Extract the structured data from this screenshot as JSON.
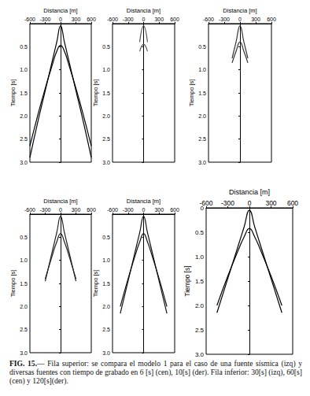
{
  "chart_data": [
    {
      "type": "line",
      "xlabel": "Distancia [m]",
      "ylabel": "Tiempo [s]",
      "xlim": [
        -600,
        600
      ],
      "xticks": [
        -600,
        -300,
        0,
        300,
        600
      ],
      "ylim": [
        0,
        3.0
      ],
      "yticks": [
        0.5,
        {
          "value": 1,
          "label": "1.0"
        },
        1.5,
        {
          "value": 2,
          "label": "2.0"
        },
        2.5,
        {
          "value": 3,
          "label": "3.0"
        }
      ],
      "x": [
        -600,
        -450,
        -300,
        -150,
        -75,
        0,
        75,
        150,
        300,
        450,
        600
      ],
      "series": [
        {
          "color": "#000000",
          "values": [
            2.9,
            2.15,
            1.45,
            0.75,
            0.4,
            0.05,
            0.4,
            0.75,
            1.45,
            2.15,
            2.9
          ]
        },
        {
          "color": "#000000",
          "values": [
            2.65,
            2.0,
            1.4,
            0.85,
            0.6,
            0.47,
            0.6,
            0.85,
            1.4,
            2.0,
            2.65
          ]
        }
      ]
    },
    {
      "type": "line",
      "xlabel": "Distancia [m]",
      "ylabel": "Tiempo [s]",
      "xlim": [
        -600,
        600
      ],
      "xticks": [
        -600,
        -300,
        0,
        300,
        600
      ],
      "ylim": [
        0,
        3.0
      ],
      "yticks": [
        0.5,
        {
          "value": 1,
          "label": "1.0"
        },
        1.5,
        {
          "value": 2,
          "label": "2.0"
        },
        2.5,
        {
          "value": 3,
          "label": "3.0"
        }
      ],
      "x": [
        -600,
        -450,
        -300,
        -150,
        -75,
        0,
        75,
        150,
        300,
        450,
        600
      ],
      "series": [
        {
          "color": "#555555",
          "values": [
            null,
            null,
            null,
            null,
            0.4,
            0.05,
            0.4,
            null,
            null,
            null,
            null
          ]
        },
        {
          "color": "#555555",
          "values": [
            null,
            null,
            null,
            null,
            0.6,
            0.45,
            0.6,
            null,
            null,
            null,
            null
          ]
        }
      ]
    },
    {
      "type": "line",
      "xlabel": "Distancia [m]",
      "ylabel": "Tiempo [s]",
      "xlim": [
        -600,
        600
      ],
      "xticks": [
        -600,
        -300,
        0,
        300,
        600
      ],
      "ylim": [
        0,
        3.0
      ],
      "yticks": [
        0.5,
        {
          "value": 1,
          "label": "1.0"
        },
        1.5,
        {
          "value": 2,
          "label": "2.0"
        },
        2.5,
        {
          "value": 3,
          "label": "3.0"
        }
      ],
      "x": [
        -600,
        -450,
        -300,
        -150,
        -75,
        0,
        75,
        150,
        300,
        450,
        600
      ],
      "series": [
        {
          "color": "#333333",
          "values": [
            null,
            null,
            null,
            0.75,
            0.4,
            0.05,
            0.4,
            0.75,
            null,
            null,
            null
          ]
        },
        {
          "color": "#333333",
          "values": [
            null,
            null,
            null,
            0.85,
            0.6,
            0.4,
            0.6,
            0.85,
            null,
            null,
            null
          ]
        }
      ]
    },
    {
      "type": "line",
      "xlabel": "Distancia [m]",
      "ylabel": "Tiempo [s]",
      "xlim": [
        -600,
        600
      ],
      "xticks": [
        -600,
        -300,
        0,
        300,
        600
      ],
      "ylim": [
        0,
        3.0
      ],
      "yticks": [
        0.5,
        {
          "value": 1,
          "label": "1.0"
        },
        1.5,
        {
          "value": 2,
          "label": "2.0"
        },
        2.5,
        {
          "value": 3,
          "label": "3.0"
        }
      ],
      "x": [
        -600,
        -450,
        -300,
        -150,
        -75,
        0,
        75,
        150,
        300,
        450,
        600
      ],
      "series": [
        {
          "color": "#222222",
          "values": [
            null,
            null,
            1.45,
            0.75,
            0.4,
            0.05,
            0.4,
            0.75,
            1.45,
            null,
            null
          ]
        },
        {
          "color": "#222222",
          "values": [
            null,
            null,
            1.4,
            0.85,
            0.6,
            0.42,
            0.6,
            0.85,
            1.4,
            null,
            null
          ]
        }
      ]
    },
    {
      "type": "line",
      "xlabel": "Distancia [m]",
      "ylabel": "Tiempo [s]",
      "xlim": [
        -600,
        600
      ],
      "xticks": [
        -600,
        -300,
        0,
        300,
        600
      ],
      "ylim": [
        0,
        3.0
      ],
      "yticks": [
        0.5,
        {
          "value": 1,
          "label": "1.0"
        },
        1.5,
        {
          "value": 2,
          "label": "2.0"
        },
        2.5,
        {
          "value": 3,
          "label": "3.0"
        }
      ],
      "x": [
        -600,
        -450,
        -300,
        -150,
        -75,
        0,
        75,
        150,
        300,
        450,
        600
      ],
      "series": [
        {
          "color": "#111111",
          "values": [
            null,
            2.15,
            1.45,
            0.75,
            0.4,
            0.05,
            0.4,
            0.75,
            1.45,
            2.15,
            null
          ]
        },
        {
          "color": "#111111",
          "values": [
            null,
            2.0,
            1.4,
            0.85,
            0.6,
            0.42,
            0.6,
            0.85,
            1.4,
            2.0,
            null
          ]
        }
      ]
    },
    {
      "type": "line",
      "xlabel": "Distancia [m]",
      "ylabel": "Tiempo [s]",
      "xlim": [
        -600,
        600
      ],
      "xticks": [
        -600,
        -300,
        0,
        300,
        600
      ],
      "ylim": [
        0,
        3.0
      ],
      "yticks": [
        0,
        0.5,
        {
          "value": 1,
          "label": "1.0"
        },
        1.5,
        {
          "value": 2,
          "label": "2.0"
        },
        2.5,
        {
          "value": 3,
          "label": "3.0"
        }
      ],
      "x": [
        -600,
        -450,
        -300,
        -150,
        -75,
        0,
        75,
        150,
        300,
        450,
        600
      ],
      "series": [
        {
          "color": "#000000",
          "values": [
            null,
            2.15,
            1.45,
            0.75,
            0.4,
            0.05,
            0.4,
            0.75,
            1.45,
            2.15,
            null
          ]
        },
        {
          "color": "#000000",
          "values": [
            null,
            2.0,
            1.4,
            0.85,
            0.6,
            0.42,
            0.6,
            0.85,
            1.4,
            2.0,
            null
          ]
        }
      ]
    }
  ],
  "caption": {
    "label": "FIG. 15.—",
    "text": "Fila superior: se compara el modelo 1 para el caso de una fuente sísmica (izq) y diversas fuentes con tiempo de grabado en 6 [s] (cen), 10[s] (der). Fila inferior: 30[s] (izq), 60[s] (cen) y 120[s](der)."
  }
}
